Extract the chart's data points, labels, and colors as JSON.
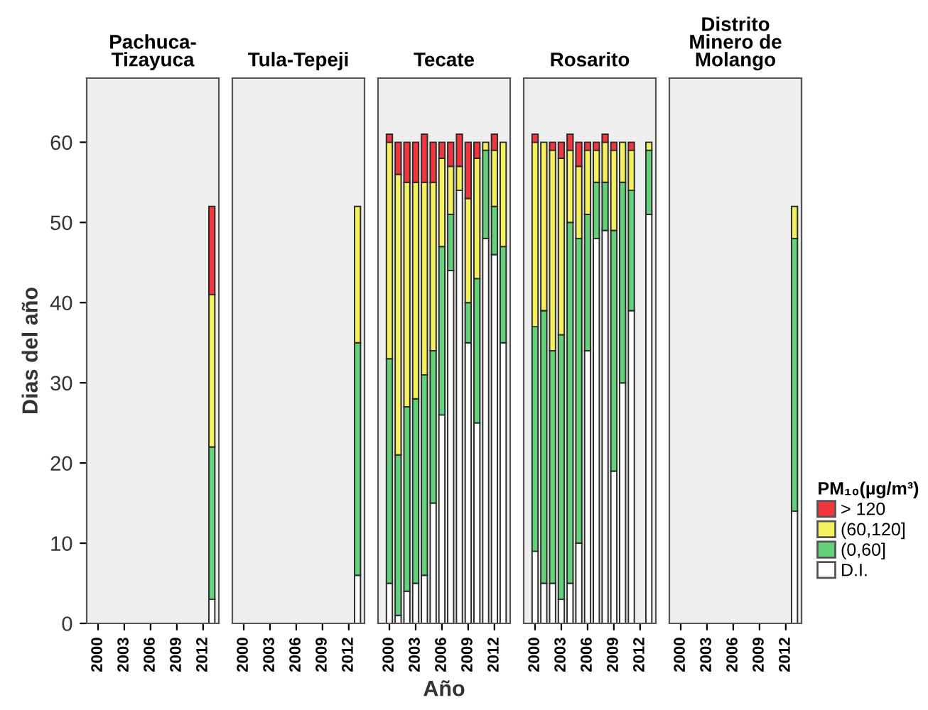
{
  "chart_data": [
    {
      "type": "bar",
      "stacked": true,
      "title": "Pachuca-\nTizayuca",
      "ylabel": "Dias del año",
      "ylim": [
        0,
        68
      ],
      "yticks": [
        0,
        10,
        20,
        30,
        40,
        50,
        60
      ],
      "grid": false,
      "categories": [
        "2000",
        null,
        null,
        "2003",
        null,
        null,
        "2006",
        null,
        null,
        "2009",
        null,
        null,
        "2012",
        null
      ],
      "series": [
        {
          "color": "#ffffff",
          "values": [
            null,
            null,
            null,
            null,
            null,
            null,
            null,
            null,
            null,
            null,
            null,
            null,
            null,
            3
          ]
        },
        {
          "color": "#63d27a",
          "values": [
            null,
            null,
            null,
            null,
            null,
            null,
            null,
            null,
            null,
            null,
            null,
            null,
            null,
            19
          ]
        },
        {
          "color": "#f5f05e",
          "values": [
            null,
            null,
            null,
            null,
            null,
            null,
            null,
            null,
            null,
            null,
            null,
            null,
            null,
            19
          ]
        },
        {
          "color": "#f2363f",
          "values": [
            null,
            null,
            null,
            null,
            null,
            null,
            null,
            null,
            null,
            null,
            null,
            null,
            null,
            11
          ]
        }
      ]
    },
    {
      "type": "bar",
      "stacked": true,
      "title": "Tula-Tepeji",
      "ylim": [
        0,
        68
      ],
      "yticks": [
        0,
        10,
        20,
        30,
        40,
        50,
        60
      ],
      "grid": false,
      "tick_labels": "x",
      "categories": [
        "2000",
        null,
        null,
        "2003",
        null,
        null,
        "2006",
        null,
        null,
        "2009",
        null,
        null,
        "2012",
        null
      ],
      "series": [
        {
          "color": "#ffffff",
          "values": [
            null,
            null,
            null,
            null,
            null,
            null,
            null,
            null,
            null,
            null,
            null,
            null,
            null,
            6
          ]
        },
        {
          "color": "#63d27a",
          "values": [
            null,
            null,
            null,
            null,
            null,
            null,
            null,
            null,
            null,
            null,
            null,
            null,
            null,
            29
          ]
        },
        {
          "color": "#f5f05e",
          "values": [
            null,
            null,
            null,
            null,
            null,
            null,
            null,
            null,
            null,
            null,
            null,
            null,
            null,
            17
          ]
        },
        {
          "color": "#f2363f",
          "values": [
            null,
            null,
            null,
            null,
            null,
            null,
            null,
            null,
            null,
            null,
            null,
            null,
            null,
            null
          ]
        }
      ]
    },
    {
      "type": "bar",
      "stacked": true,
      "title": "Tecate",
      "xlabel": "Año",
      "ylim": [
        0,
        68
      ],
      "yticks": [
        0,
        10,
        20,
        30,
        40,
        50,
        60
      ],
      "grid": false,
      "tick_labels": "x",
      "categories": [
        "2000",
        null,
        null,
        "2003",
        null,
        null,
        "2006",
        null,
        null,
        "2009",
        null,
        null,
        "2012",
        null
      ],
      "series": [
        {
          "color": "#ffffff",
          "values": [
            5,
            1,
            4,
            5,
            6,
            15,
            26,
            44,
            54,
            35,
            25,
            48,
            46,
            35
          ]
        },
        {
          "color": "#63d27a",
          "values": [
            28,
            20,
            23,
            23,
            25,
            19,
            21,
            7,
            0,
            5,
            18,
            11,
            6,
            12
          ]
        },
        {
          "color": "#f5f05e",
          "values": [
            27,
            35,
            28,
            27,
            24,
            21,
            11,
            6,
            3,
            13,
            15,
            1,
            7,
            13
          ]
        },
        {
          "color": "#f2363f",
          "values": [
            1,
            4,
            5,
            5,
            6,
            5,
            2,
            3,
            4,
            7,
            2,
            0,
            2,
            0
          ]
        }
      ]
    },
    {
      "type": "bar",
      "stacked": true,
      "title": "Rosarito",
      "ylim": [
        0,
        68
      ],
      "yticks": [
        0,
        10,
        20,
        30,
        40,
        50,
        60
      ],
      "grid": false,
      "tick_labels": "x",
      "categories": [
        "2000",
        null,
        null,
        "2003",
        null,
        null,
        "2006",
        null,
        null,
        "2009",
        null,
        null,
        "2012",
        null
      ],
      "series": [
        {
          "color": "#ffffff",
          "values": [
            9,
            5,
            5,
            3,
            5,
            10,
            34,
            48,
            49,
            19,
            30,
            39,
            null,
            51
          ]
        },
        {
          "color": "#63d27a",
          "values": [
            28,
            34,
            29,
            33,
            45,
            38,
            17,
            7,
            6,
            30,
            25,
            15,
            null,
            8
          ]
        },
        {
          "color": "#f5f05e",
          "values": [
            23,
            21,
            25,
            22,
            9,
            9,
            8,
            4,
            5,
            10,
            5,
            5,
            null,
            1
          ]
        },
        {
          "color": "#f2363f",
          "values": [
            1,
            0,
            1,
            2,
            2,
            3,
            1,
            1,
            1,
            1,
            0,
            1,
            null,
            0
          ]
        }
      ]
    },
    {
      "type": "bar",
      "stacked": true,
      "title": "Distrito\nMinero de\nMolango",
      "ylim": [
        0,
        68
      ],
      "yticks": [
        0,
        10,
        20,
        30,
        40,
        50,
        60
      ],
      "grid": false,
      "legend": "right",
      "legend_title": "PM₁₀(µg/m³)",
      "tick_labels": "x",
      "categories": [
        "2000",
        null,
        null,
        "2003",
        null,
        null,
        "2006",
        null,
        null,
        "2009",
        null,
        null,
        "2012",
        null
      ],
      "series": [
        {
          "name": "D.I.",
          "color": "#ffffff",
          "values": [
            null,
            null,
            null,
            null,
            null,
            null,
            null,
            null,
            null,
            null,
            null,
            null,
            null,
            14
          ]
        },
        {
          "name": "(0,60]",
          "color": "#63d27a",
          "values": [
            null,
            null,
            null,
            null,
            null,
            null,
            null,
            null,
            null,
            null,
            null,
            null,
            null,
            34
          ]
        },
        {
          "name": "(60,120]",
          "color": "#f5f05e",
          "values": [
            null,
            null,
            null,
            null,
            null,
            null,
            null,
            null,
            null,
            null,
            null,
            null,
            null,
            4
          ]
        },
        {
          "name": "> 120",
          "color": "#f2363f",
          "values": [
            null,
            null,
            null,
            null,
            null,
            null,
            null,
            null,
            null,
            null,
            null,
            null,
            null,
            null
          ]
        }
      ]
    }
  ]
}
